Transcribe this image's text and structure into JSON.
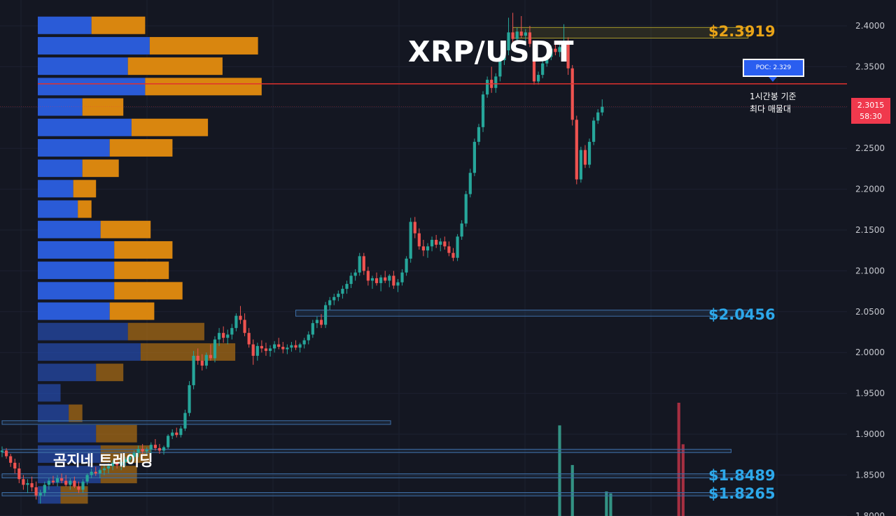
{
  "chart_data": {
    "type": "candlestick",
    "title": "XRP/USDT",
    "ylim": [
      1.796,
      2.42
    ],
    "y_ticks": [
      "2.4000",
      "2.3500",
      "2.3000",
      "2.2500",
      "2.2000",
      "2.1500",
      "2.1000",
      "2.0500",
      "2.0000",
      "1.9500",
      "1.9000",
      "1.8500",
      "1.8000"
    ],
    "current_price": "2.3015",
    "countdown": "58:30",
    "poc": {
      "label": "POC: 2.329",
      "price": 2.329,
      "line_color": "#e0312e"
    },
    "annotation": [
      "1시간봉 기준",
      "최다 매물대"
    ],
    "watermark": "곰지네 트레이딩",
    "levels": [
      {
        "label": "$2.3919",
        "price": 2.3919,
        "color": "#e8a317"
      },
      {
        "label": "$2.0456",
        "price": 2.0456,
        "color": "#2da8ea"
      },
      {
        "label": "$1.8489",
        "price": 1.8489,
        "color": "#2da8ea"
      },
      {
        "label": "$1.8265",
        "price": 1.8265,
        "color": "#2da8ea"
      }
    ],
    "zones": [
      {
        "price_top": 2.398,
        "price_bottom": 2.385,
        "x_start": 120,
        "x_end": 172,
        "color": "#a89a2a"
      },
      {
        "price_top": 2.052,
        "price_bottom": 2.0445,
        "x_start": 69,
        "x_end": 172,
        "color": "#3e6fa8"
      },
      {
        "price_top": 1.9165,
        "price_bottom": 1.912,
        "x_start": 0,
        "x_end": 88,
        "color": "#3e6fa8"
      },
      {
        "price_top": 1.8815,
        "price_bottom": 1.8775,
        "x_start": 0,
        "x_end": 168,
        "color": "#3e6fa8"
      },
      {
        "price_top": 1.8515,
        "price_bottom": 1.8465,
        "x_start": 0,
        "x_end": 172,
        "color": "#3e6fa8"
      },
      {
        "price_top": 1.8285,
        "price_bottom": 1.8245,
        "x_start": 0,
        "x_end": 172,
        "color": "#3e6fa8"
      }
    ],
    "volume_profile": [
      {
        "price": 2.4,
        "buy": 59,
        "sell": 59
      },
      {
        "price": 2.375,
        "buy": 123,
        "sell": 119
      },
      {
        "price": 2.35,
        "buy": 99,
        "sell": 104
      },
      {
        "price": 2.325,
        "buy": 118,
        "sell": 128
      },
      {
        "price": 2.3,
        "buy": 49,
        "sell": 45
      },
      {
        "price": 2.275,
        "buy": 103,
        "sell": 84
      },
      {
        "price": 2.25,
        "buy": 79,
        "sell": 69
      },
      {
        "price": 2.225,
        "buy": 49,
        "sell": 40
      },
      {
        "price": 2.2,
        "buy": 39,
        "sell": 25
      },
      {
        "price": 2.175,
        "buy": 44,
        "sell": 15
      },
      {
        "price": 2.15,
        "buy": 69,
        "sell": 55
      },
      {
        "price": 2.125,
        "buy": 84,
        "sell": 64
      },
      {
        "price": 2.1,
        "buy": 84,
        "sell": 60
      },
      {
        "price": 2.075,
        "buy": 84,
        "sell": 75
      },
      {
        "price": 2.05,
        "buy": 79,
        "sell": 49
      },
      {
        "price": 2.025,
        "buy": 99,
        "sell": 84
      },
      {
        "price": 2.0,
        "buy": 113,
        "sell": 104
      },
      {
        "price": 1.975,
        "buy": 64,
        "sell": 30
      },
      {
        "price": 1.95,
        "buy": 25,
        "sell": 0
      },
      {
        "price": 1.925,
        "buy": 34,
        "sell": 15
      },
      {
        "price": 1.9,
        "buy": 64,
        "sell": 45
      },
      {
        "price": 1.875,
        "buy": 69,
        "sell": 55
      },
      {
        "price": 1.85,
        "buy": 69,
        "sell": 40
      },
      {
        "price": 1.825,
        "buy": 25,
        "sell": 30
      }
    ],
    "candles": [
      [
        1.878,
        1.885,
        1.872,
        1.88
      ],
      [
        1.88,
        1.883,
        1.87,
        1.873
      ],
      [
        1.873,
        1.876,
        1.86,
        1.865
      ],
      [
        1.865,
        1.87,
        1.852,
        1.858
      ],
      [
        1.858,
        1.865,
        1.84,
        1.845
      ],
      [
        1.845,
        1.85,
        1.832,
        1.838
      ],
      [
        1.838,
        1.845,
        1.828,
        1.84
      ],
      [
        1.84,
        1.848,
        1.83,
        1.835
      ],
      [
        1.835,
        1.842,
        1.82,
        1.825
      ],
      [
        1.825,
        1.832,
        1.815,
        1.828
      ],
      [
        1.828,
        1.842,
        1.824,
        1.838
      ],
      [
        1.838,
        1.846,
        1.832,
        1.843
      ],
      [
        1.843,
        1.849,
        1.838,
        1.841
      ],
      [
        1.841,
        1.85,
        1.836,
        1.846
      ],
      [
        1.846,
        1.852,
        1.84,
        1.843
      ],
      [
        1.843,
        1.85,
        1.836,
        1.838
      ],
      [
        1.838,
        1.846,
        1.832,
        1.843
      ],
      [
        1.843,
        1.848,
        1.834,
        1.836
      ],
      [
        1.836,
        1.842,
        1.828,
        1.832
      ],
      [
        1.832,
        1.845,
        1.828,
        1.842
      ],
      [
        1.842,
        1.852,
        1.838,
        1.85
      ],
      [
        1.85,
        1.858,
        1.846,
        1.854
      ],
      [
        1.854,
        1.86,
        1.849,
        1.852
      ],
      [
        1.852,
        1.858,
        1.846,
        1.856
      ],
      [
        1.856,
        1.862,
        1.85,
        1.858
      ],
      [
        1.858,
        1.864,
        1.852,
        1.861
      ],
      [
        1.861,
        1.868,
        1.856,
        1.865
      ],
      [
        1.865,
        1.87,
        1.858,
        1.862
      ],
      [
        1.862,
        1.868,
        1.856,
        1.866
      ],
      [
        1.866,
        1.872,
        1.861,
        1.869
      ],
      [
        1.869,
        1.876,
        1.864,
        1.872
      ],
      [
        1.872,
        1.88,
        1.867,
        1.877
      ],
      [
        1.877,
        1.886,
        1.872,
        1.882
      ],
      [
        1.882,
        1.888,
        1.876,
        1.879
      ],
      [
        1.879,
        1.884,
        1.874,
        1.881
      ],
      [
        1.881,
        1.89,
        1.876,
        1.887
      ],
      [
        1.887,
        1.894,
        1.88,
        1.883
      ],
      [
        1.883,
        1.888,
        1.876,
        1.88
      ],
      [
        1.88,
        1.886,
        1.875,
        1.884
      ],
      [
        1.884,
        1.9,
        1.882,
        1.898
      ],
      [
        1.898,
        1.906,
        1.894,
        1.902
      ],
      [
        1.902,
        1.908,
        1.896,
        1.899
      ],
      [
        1.899,
        1.91,
        1.896,
        1.907
      ],
      [
        1.907,
        1.93,
        1.904,
        1.926
      ],
      [
        1.926,
        1.965,
        1.922,
        1.96
      ],
      [
        1.96,
        2.002,
        1.955,
        1.996
      ],
      [
        1.996,
        2.005,
        1.985,
        1.99
      ],
      [
        1.99,
        1.998,
        1.978,
        1.984
      ],
      [
        1.984,
        2.0,
        1.98,
        1.997
      ],
      [
        1.997,
        2.01,
        1.99,
        1.993
      ],
      [
        1.993,
        2.02,
        1.988,
        2.016
      ],
      [
        2.016,
        2.03,
        2.008,
        2.024
      ],
      [
        2.024,
        2.032,
        2.012,
        2.018
      ],
      [
        2.018,
        2.028,
        2.01,
        2.022
      ],
      [
        2.022,
        2.035,
        2.016,
        2.03
      ],
      [
        2.03,
        2.048,
        2.026,
        2.045
      ],
      [
        2.045,
        2.057,
        2.035,
        2.04
      ],
      [
        2.04,
        2.048,
        2.02,
        2.024
      ],
      [
        2.024,
        2.03,
        2.006,
        2.01
      ],
      [
        2.01,
        2.016,
        1.985,
        1.996
      ],
      [
        1.996,
        2.012,
        1.99,
        2.008
      ],
      [
        2.008,
        2.015,
        2.0,
        2.005
      ],
      [
        2.005,
        2.012,
        1.996,
        2.002
      ],
      [
        2.002,
        2.009,
        1.995,
        2.005
      ],
      [
        2.005,
        2.014,
        2.0,
        2.01
      ],
      [
        2.01,
        2.018,
        2.004,
        2.007
      ],
      [
        2.007,
        2.013,
        1.999,
        2.004
      ],
      [
        2.004,
        2.01,
        1.998,
        2.006
      ],
      [
        2.006,
        2.013,
        2.001,
        2.009
      ],
      [
        2.009,
        2.015,
        2.003,
        2.006
      ],
      [
        2.006,
        2.012,
        2.0,
        2.01
      ],
      [
        2.01,
        2.018,
        2.005,
        2.015
      ],
      [
        2.015,
        2.026,
        2.01,
        2.022
      ],
      [
        2.022,
        2.04,
        2.018,
        2.036
      ],
      [
        2.036,
        2.044,
        2.03,
        2.04
      ],
      [
        2.04,
        2.047,
        2.03,
        2.034
      ],
      [
        2.034,
        2.062,
        2.03,
        2.058
      ],
      [
        2.058,
        2.068,
        2.052,
        2.064
      ],
      [
        2.064,
        2.072,
        2.058,
        2.068
      ],
      [
        2.068,
        2.076,
        2.063,
        2.072
      ],
      [
        2.072,
        2.082,
        2.066,
        2.078
      ],
      [
        2.078,
        2.088,
        2.072,
        2.084
      ],
      [
        2.084,
        2.098,
        2.079,
        2.094
      ],
      [
        2.094,
        2.102,
        2.088,
        2.098
      ],
      [
        2.098,
        2.122,
        2.094,
        2.118
      ],
      [
        2.118,
        2.122,
        2.095,
        2.1
      ],
      [
        2.1,
        2.105,
        2.082,
        2.088
      ],
      [
        2.088,
        2.094,
        2.078,
        2.091
      ],
      [
        2.091,
        2.098,
        2.082,
        2.085
      ],
      [
        2.085,
        2.095,
        2.075,
        2.092
      ],
      [
        2.092,
        2.1,
        2.085,
        2.088
      ],
      [
        2.088,
        2.096,
        2.08,
        2.094
      ],
      [
        2.094,
        2.1,
        2.078,
        2.082
      ],
      [
        2.082,
        2.09,
        2.074,
        2.086
      ],
      [
        2.086,
        2.102,
        2.082,
        2.098
      ],
      [
        2.098,
        2.118,
        2.094,
        2.115
      ],
      [
        2.115,
        2.165,
        2.11,
        2.16
      ],
      [
        2.16,
        2.166,
        2.14,
        2.146
      ],
      [
        2.146,
        2.152,
        2.126,
        2.13
      ],
      [
        2.13,
        2.138,
        2.118,
        2.125
      ],
      [
        2.125,
        2.134,
        2.116,
        2.13
      ],
      [
        2.13,
        2.142,
        2.124,
        2.138
      ],
      [
        2.138,
        2.144,
        2.128,
        2.132
      ],
      [
        2.132,
        2.14,
        2.124,
        2.136
      ],
      [
        2.136,
        2.142,
        2.126,
        2.13
      ],
      [
        2.13,
        2.136,
        2.118,
        2.122
      ],
      [
        2.122,
        2.128,
        2.112,
        2.116
      ],
      [
        2.116,
        2.145,
        2.112,
        2.142
      ],
      [
        2.142,
        2.162,
        2.138,
        2.158
      ],
      [
        2.158,
        2.198,
        2.154,
        2.194
      ],
      [
        2.194,
        2.225,
        2.19,
        2.22
      ],
      [
        2.22,
        2.262,
        2.216,
        2.258
      ],
      [
        2.258,
        2.28,
        2.254,
        2.276
      ],
      [
        2.276,
        2.32,
        2.27,
        2.316
      ],
      [
        2.316,
        2.338,
        2.312,
        2.334
      ],
      [
        2.334,
        2.35,
        2.318,
        2.324
      ],
      [
        2.324,
        2.342,
        2.318,
        2.338
      ],
      [
        2.338,
        2.362,
        2.332,
        2.358
      ],
      [
        2.358,
        2.375,
        2.352,
        2.37
      ],
      [
        2.37,
        2.41,
        2.364,
        2.392
      ],
      [
        2.392,
        2.416,
        2.376,
        2.384
      ],
      [
        2.384,
        2.398,
        2.38,
        2.393
      ],
      [
        2.393,
        2.412,
        2.385,
        2.388
      ],
      [
        2.388,
        2.396,
        2.38,
        2.392
      ],
      [
        2.392,
        2.4,
        2.374,
        2.378
      ],
      [
        2.378,
        2.382,
        2.328,
        2.332
      ],
      [
        2.332,
        2.344,
        2.328,
        2.34
      ],
      [
        2.34,
        2.358,
        2.336,
        2.354
      ],
      [
        2.354,
        2.366,
        2.35,
        2.362
      ],
      [
        2.362,
        2.376,
        2.358,
        2.372
      ],
      [
        2.372,
        2.382,
        2.364,
        2.368
      ],
      [
        2.368,
        2.378,
        2.362,
        2.374
      ],
      [
        2.374,
        2.402,
        2.37,
        2.38
      ],
      [
        2.38,
        2.386,
        2.34,
        2.348
      ],
      [
        2.348,
        2.352,
        2.278,
        2.285
      ],
      [
        2.285,
        2.29,
        2.206,
        2.212
      ],
      [
        2.212,
        2.252,
        2.208,
        2.248
      ],
      [
        2.248,
        2.254,
        2.226,
        2.23
      ],
      [
        2.23,
        2.262,
        2.226,
        2.258
      ],
      [
        2.258,
        2.288,
        2.254,
        2.284
      ],
      [
        2.284,
        2.298,
        2.28,
        2.294
      ],
      [
        2.294,
        2.31,
        2.29,
        2.301
      ]
    ],
    "volumes": [
      {
        "index": 131,
        "value": 0.48,
        "color": "#3bb39e"
      },
      {
        "index": 134,
        "value": 0.27,
        "color": "#3bb39e"
      },
      {
        "index": 142,
        "value": 0.13,
        "color": "#3bb39e"
      },
      {
        "index": 143,
        "value": 0.12,
        "color": "#3bb39e"
      },
      {
        "index": 159,
        "value": 0.6,
        "color": "#c9364a"
      },
      {
        "index": 160,
        "value": 0.38,
        "color": "#c9364a"
      }
    ],
    "colors": {
      "up": "#26a69a",
      "down": "#ef5350",
      "buy": "#2a5bd7",
      "sell": "#d9860f",
      "grid": "#1c2030",
      "axis_text": "#c6c8cf"
    }
  }
}
